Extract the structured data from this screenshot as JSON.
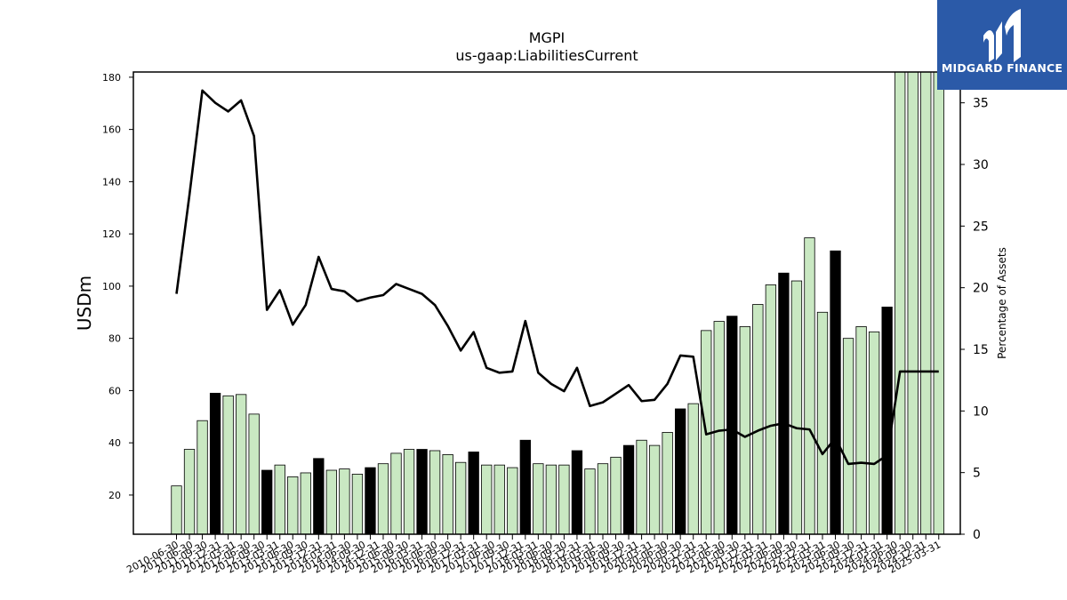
{
  "chart_data": {
    "type": "bar",
    "title": "MGPI",
    "subtitle": "us-gaap:LiabilitiesCurrent",
    "ylabel": "USDm",
    "y2label": "Percentage of Assets",
    "ylim": [
      5,
      182
    ],
    "y2lim": [
      0,
      37.5
    ],
    "yticks": [
      20,
      40,
      60,
      80,
      100,
      120,
      140,
      160,
      180
    ],
    "y2ticks": [
      0,
      5,
      10,
      15,
      20,
      25,
      30,
      35
    ],
    "grid": false,
    "legend": "none",
    "colors": {
      "bar": "#c9e8c2",
      "bar_highlight": "#000000",
      "line": "#000000",
      "axis": "#000000"
    },
    "categories": [
      "2010-06-30",
      "2010-09-30",
      "2010-12-31",
      "2011-03-31",
      "2011-06-30",
      "2011-09-30",
      "2011-12-31",
      "2012-03-31",
      "2012-06-30",
      "2012-09-30",
      "2012-12-31",
      "2013-03-31",
      "2013-06-30",
      "2013-09-30",
      "2013-12-31",
      "2014-03-31",
      "2014-06-30",
      "2014-09-30",
      "2014-12-31",
      "2015-03-31",
      "2015-06-30",
      "2015-09-30",
      "2015-12-31",
      "2016-03-31",
      "2016-06-30",
      "2016-09-30",
      "2016-12-31",
      "2017-03-31",
      "2017-06-30",
      "2017-09-30",
      "2017-12-31",
      "2018-03-31",
      "2018-06-30",
      "2018-09-30",
      "2018-12-31",
      "2019-03-31",
      "2019-06-30",
      "2019-09-30",
      "2019-12-31",
      "2020-03-31",
      "2020-06-30",
      "2020-09-30",
      "2020-12-31",
      "2021-03-31",
      "2021-06-30",
      "2021-09-30",
      "2021-12-31",
      "2022-03-31",
      "2022-06-30",
      "2022-09-30",
      "2022-12-31",
      "2023-03-31",
      "2023-06-30",
      "2023-09-30",
      "2023-12-31",
      "2024-03-31",
      "2024-06-30",
      "2024-09-30",
      "2024-12-31",
      "2025-03-31"
    ],
    "tick_labels": [
      "2010-06-30",
      "2011-06-30",
      "2011-09-30",
      "2011-12-31",
      "2012-03-31",
      "2012-06-30",
      "2012-09-30",
      "2013-03-31",
      "2013-06-30",
      "2013-09-30",
      "2013-12-31",
      "2014-03-31",
      "2014-06-30",
      "2014-09-30",
      "2014-12-31",
      "2015-06-30",
      "2015-09-30",
      "2016-03-31",
      "2016-06-30",
      "2016-09-30",
      "2016-12-31",
      "2017-03-31",
      "2017-06-30",
      "2017-09-30",
      "2017-12-31",
      "2018-03-31",
      "2018-06-30",
      "2018-09-30",
      "2018-12-31",
      "2019-03-31",
      "2019-06-30",
      "2019-09-30",
      "2019-12-31",
      "2020-03-31",
      "2020-06-30",
      "2020-09-30",
      "2020-12-31",
      "2021-03-31",
      "2021-06-30",
      "2021-09-30",
      "2021-12-31",
      "2022-03-31",
      "2022-06-30",
      "2022-09-30",
      "2022-12-31",
      "2023-03-31",
      "2023-06-30",
      "2023-09-30",
      "2023-12-31",
      "2024-03-31",
      "2024-06-30",
      "2024-09-30",
      "2024-12-31",
      "2025-03-31"
    ],
    "series": [
      {
        "axis": "left",
        "kind": "bar",
        "values": [
          23.5,
          37.5,
          48.5,
          59,
          58,
          58.5,
          51,
          29.5,
          31.5,
          27,
          28.5,
          34,
          29.5,
          30,
          28,
          30.5,
          32,
          36,
          37.5,
          37.5,
          37,
          35.5,
          32.5,
          36.5,
          31.5,
          31.5,
          30.5,
          41,
          32,
          31.5,
          31.5,
          37,
          30,
          32,
          34.5,
          39,
          41,
          39,
          44,
          53,
          55,
          83,
          86.5,
          88.5,
          84.5,
          93,
          100.5,
          105,
          102,
          118.5,
          90,
          113.5,
          80,
          84.5,
          82.5,
          92,
          182,
          182,
          182,
          182
        ],
        "highlight": [
          false,
          false,
          false,
          true,
          false,
          false,
          false,
          true,
          false,
          false,
          false,
          true,
          false,
          false,
          false,
          true,
          false,
          false,
          false,
          true,
          false,
          false,
          false,
          true,
          false,
          false,
          false,
          true,
          false,
          false,
          false,
          true,
          false,
          false,
          false,
          true,
          false,
          false,
          false,
          true,
          false,
          false,
          false,
          true,
          false,
          false,
          false,
          true,
          false,
          false,
          false,
          true,
          false,
          false,
          false,
          true,
          false,
          false,
          false,
          false
        ]
      },
      {
        "axis": "right",
        "kind": "line",
        "values": [
          19.5,
          27.5,
          36,
          35,
          34.3,
          35.2,
          32.3,
          18.2,
          19.8,
          17,
          18.6,
          22.5,
          19.9,
          19.7,
          18.9,
          19.2,
          19.4,
          20.3,
          19.9,
          19.5,
          18.6,
          16.9,
          14.9,
          16.4,
          13.5,
          13.1,
          13.2,
          17.3,
          13.1,
          12.2,
          11.6,
          13.5,
          10.4,
          10.7,
          11.4,
          12.1,
          10.8,
          10.9,
          12.2,
          14.5,
          14.4,
          8.1,
          8.4,
          8.5,
          7.9,
          8.4,
          8.8,
          9,
          8.6,
          8.5,
          6.5,
          7.8,
          5.7,
          5.8,
          5.7,
          6.4,
          13.2,
          13.2,
          13.2,
          13.2
        ]
      }
    ]
  },
  "logo": {
    "text": "MIDGARD FINANCE",
    "color": "#2b5aa8"
  }
}
